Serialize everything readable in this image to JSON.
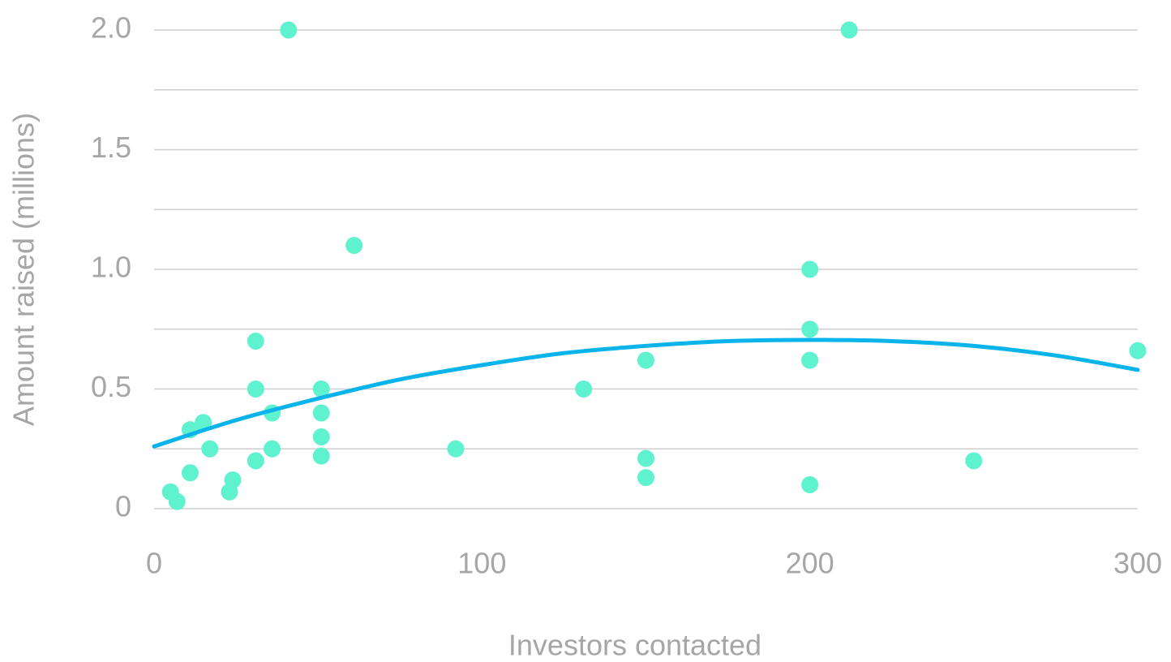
{
  "chart_data": {
    "type": "scatter",
    "x_label": "Investors contacted",
    "y_label": "Amount raised (millions)",
    "xlim": [
      0,
      300
    ],
    "xticks": [
      0,
      100,
      200,
      300
    ],
    "ylim": [
      0,
      2
    ],
    "yticks": [
      0,
      0.5,
      {
        "value": 1,
        "label": "1.0"
      },
      1.5,
      {
        "value": 2,
        "label": "2.0"
      }
    ],
    "y_minor_grid": [
      0.25,
      0.75,
      1.25,
      1.75
    ],
    "grid": true,
    "series": [
      {
        "color": "#5ef2cf",
        "x": [
          41,
          212,
          61,
          200,
          200,
          200,
          200,
          31,
          31,
          31,
          36,
          36,
          51,
          51,
          51,
          51,
          11,
          15,
          17,
          11,
          5,
          7,
          23,
          24,
          92,
          131,
          150,
          150,
          150,
          250,
          300
        ],
        "values": [
          2,
          2,
          1.1,
          1,
          0.75,
          0.62,
          0.1,
          0.7,
          0.5,
          0.2,
          0.25,
          0.4,
          0.5,
          0.4,
          0.3,
          0.22,
          0.33,
          0.36,
          0.25,
          0.15,
          0.07,
          0.03,
          0.07,
          0.12,
          0.25,
          0.5,
          0.62,
          0.21,
          0.13,
          0.2,
          0.66
        ]
      },
      {
        "type": "line",
        "color": "#0ab4ea",
        "x": [
          0,
          25,
          50,
          75,
          100,
          125,
          150,
          175,
          200,
          225,
          250,
          275,
          300
        ],
        "values": [
          0.26,
          0.37,
          0.46,
          0.54,
          0.6,
          0.65,
          0.68,
          0.7,
          0.705,
          0.7,
          0.68,
          0.64,
          0.58
        ]
      }
    ]
  }
}
